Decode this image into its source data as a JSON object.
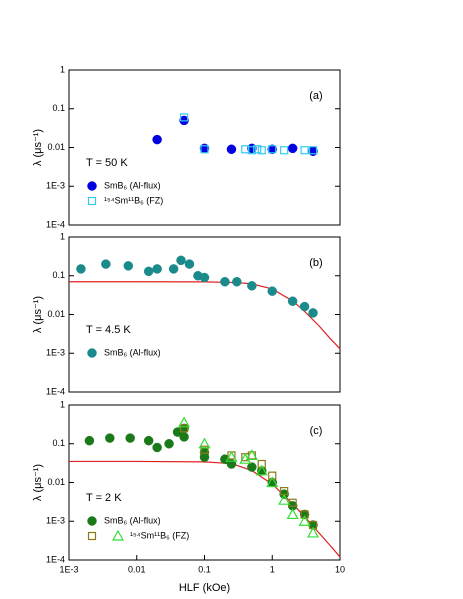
{
  "chart_data": [
    {
      "type": "scatter",
      "panel_label": "(a)",
      "annotation": "T = 50 K",
      "ylabel": "λ (μs⁻¹)",
      "log_x": true,
      "log_y": true,
      "xlim": [
        0.001,
        10
      ],
      "ylim": [
        0.0001,
        1
      ],
      "yticks": [
        1,
        0.1,
        0.01,
        {
          "value": 0.001,
          "label": "1E-3"
        },
        {
          "value": 0.0001,
          "label": "1E-4"
        }
      ],
      "series": [
        {
          "name": "SmB₆ (Al-flux)",
          "color": "#0000e0",
          "marker": "circle",
          "filled": true,
          "x": [
            0.02,
            0.05,
            0.1,
            0.25,
            0.5,
            1,
            2,
            4
          ],
          "values": [
            0.016,
            0.05,
            0.0095,
            0.009,
            0.0095,
            0.009,
            0.0095,
            0.008
          ]
        },
        {
          "name": "¹⁵⁴Sm¹¹B₆ (FZ)",
          "color": "#33ccee",
          "marker": "square",
          "filled": false,
          "x": [
            0.05,
            0.1,
            0.4,
            0.5,
            0.6,
            0.7,
            1,
            1.5,
            3,
            4
          ],
          "values": [
            0.06,
            0.009,
            0.009,
            0.0085,
            0.009,
            0.0085,
            0.009,
            0.0085,
            0.0085,
            0.0085
          ]
        }
      ]
    },
    {
      "type": "scatter",
      "panel_label": "(b)",
      "annotation": "T = 4.5 K",
      "ylabel": "λ (μs⁻¹)",
      "log_x": true,
      "log_y": true,
      "xlim": [
        0.001,
        10
      ],
      "ylim": [
        0.0001,
        1
      ],
      "yticks": [
        1,
        0.1,
        0.01,
        {
          "value": 0.001,
          "label": "1E-3"
        },
        {
          "value": 0.0001,
          "label": "1E-4"
        }
      ],
      "series": [
        {
          "name": "SmB₆ (Al-flux)",
          "color": "#1a8a8a",
          "marker": "circle",
          "filled": true,
          "x": [
            0.0015,
            0.0035,
            0.0075,
            0.015,
            0.02,
            0.035,
            0.045,
            0.06,
            0.08,
            0.1,
            0.2,
            0.3,
            0.5,
            1,
            2,
            3,
            4
          ],
          "values": [
            0.15,
            0.2,
            0.18,
            0.13,
            0.15,
            0.15,
            0.25,
            0.2,
            0.1,
            0.09,
            0.07,
            0.07,
            0.055,
            0.04,
            0.022,
            0.016,
            0.011
          ]
        }
      ],
      "fit": {
        "color": "#e02020",
        "x": [
          0.001,
          0.01,
          0.1,
          0.3,
          0.5,
          1,
          2,
          3,
          5,
          7,
          10
        ],
        "values": [
          0.07,
          0.07,
          0.0696,
          0.0668,
          0.0618,
          0.0457,
          0.0224,
          0.0121,
          0.0049,
          0.0025,
          0.0013
        ]
      }
    },
    {
      "type": "scatter",
      "panel_label": "(c)",
      "annotation": "T = 2 K",
      "ylabel": "λ (μs⁻¹)",
      "xlabel": "HLF (kOe)",
      "log_x": true,
      "log_y": true,
      "xlim": [
        0.001,
        10
      ],
      "ylim": [
        0.0001,
        1
      ],
      "xticks": [
        {
          "value": 0.001,
          "label": "1E-3"
        },
        0.01,
        0.1,
        1,
        10
      ],
      "yticks": [
        1,
        0.1,
        0.01,
        {
          "value": 0.001,
          "label": "1E-3"
        },
        {
          "value": 0.0001,
          "label": "1E-4"
        }
      ],
      "series": [
        {
          "name": "SmB₆ (Al-flux)",
          "color": "#1a7a1a",
          "marker": "circle",
          "filled": true,
          "x": [
            0.002,
            0.004,
            0.008,
            0.015,
            0.02,
            0.03,
            0.04,
            0.05,
            0.05,
            0.1,
            0.1,
            0.2,
            0.25,
            0.5,
            0.7,
            1,
            1.5,
            2,
            3,
            4
          ],
          "values": [
            0.12,
            0.14,
            0.14,
            0.12,
            0.08,
            0.1,
            0.2,
            0.15,
            0.25,
            0.06,
            0.045,
            0.04,
            0.03,
            0.025,
            0.02,
            0.01,
            0.005,
            0.0025,
            0.0015,
            0.0008
          ]
        },
        {
          "name": "¹⁵⁴Sm¹¹B₆ (FZ)",
          "color": "#8a7a1a",
          "marker": "square",
          "filled": false,
          "x": [
            0.05,
            0.1,
            0.25,
            0.4,
            0.5,
            0.7,
            1,
            1.5,
            2,
            3,
            4
          ],
          "values": [
            0.25,
            0.07,
            0.05,
            0.045,
            0.05,
            0.03,
            0.015,
            0.006,
            0.003,
            0.0015,
            0.0008
          ]
        },
        {
          "color": "#33dd33",
          "marker": "triangle",
          "filled": false,
          "x": [
            0.05,
            0.1,
            0.25,
            0.4,
            0.5,
            0.7,
            1,
            1.5,
            2,
            3,
            4
          ],
          "values": [
            0.35,
            0.1,
            0.045,
            0.04,
            0.05,
            0.02,
            0.01,
            0.0035,
            0.0015,
            0.001,
            0.0005
          ]
        }
      ],
      "fit": {
        "color": "#e02020",
        "x": [
          0.001,
          0.01,
          0.1,
          0.2,
          0.3,
          0.5,
          1,
          2,
          3,
          5,
          7,
          10
        ],
        "values": [
          0.035,
          0.035,
          0.034,
          0.0315,
          0.0278,
          0.0203,
          0.0091,
          0.0028,
          0.00131,
          0.000479,
          0.000247,
          0.00012
        ]
      }
    }
  ]
}
